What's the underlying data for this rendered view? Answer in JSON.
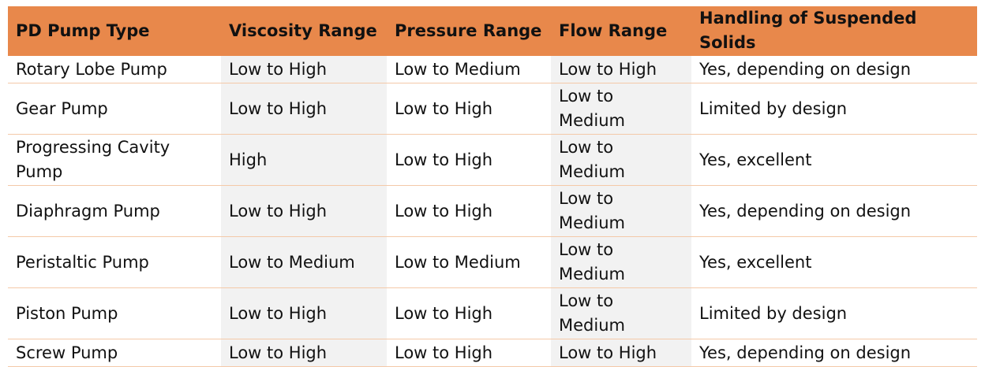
{
  "table": {
    "header": [
      "PD Pump Type",
      "Viscosity Range",
      "Pressure Range",
      "Flow Range",
      "Handling of Suspended Solids"
    ],
    "rows": [
      [
        "Rotary Lobe Pump",
        "Low to High",
        "Low to Medium",
        "Low to High",
        "Yes, depending on design"
      ],
      [
        "Gear Pump",
        "Low to High",
        "Low to High",
        "Low to Medium",
        "Limited by design"
      ],
      [
        "Progressing Cavity Pump",
        "High",
        "Low to High",
        "Low to Medium",
        "Yes, excellent"
      ],
      [
        "Diaphragm Pump",
        "Low to High",
        "Low to High",
        "Low to Medium",
        "Yes, depending on design"
      ],
      [
        "Peristaltic Pump",
        "Low to Medium",
        "Low to Medium",
        "Low to Medium",
        "Yes, excellent"
      ],
      [
        "Piston Pump",
        "Low to High",
        "Low to High",
        "Low to Medium",
        "Limited by design"
      ],
      [
        "Screw Pump",
        "Low to High",
        "Low to High",
        "Low to High",
        "Yes, depending on design"
      ]
    ]
  }
}
